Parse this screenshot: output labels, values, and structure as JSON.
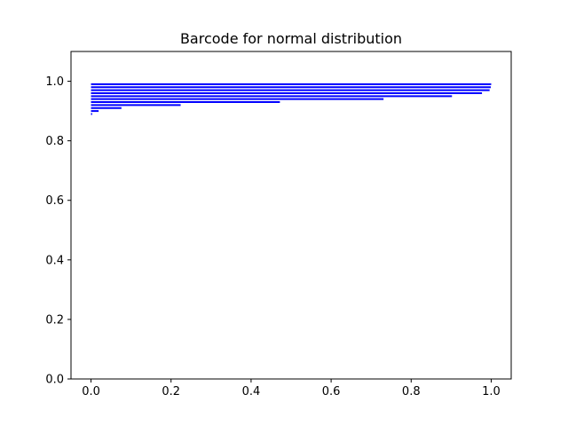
{
  "chart_data": {
    "type": "bar",
    "orientation": "horizontal-segments",
    "title": "Barcode for normal distribution",
    "xlabel": "",
    "ylabel": "",
    "xlim": [
      -0.05,
      1.05
    ],
    "ylim": [
      0.0,
      1.1
    ],
    "xticks": [
      0.0,
      0.2,
      0.4,
      0.6,
      0.8,
      1.0
    ],
    "xtick_labels": [
      "0.0",
      "0.2",
      "0.4",
      "0.6",
      "0.8",
      "1.0"
    ],
    "yticks": [
      0.0,
      0.2,
      0.4,
      0.6,
      0.8,
      1.0
    ],
    "ytick_labels": [
      "0.0",
      "0.2",
      "0.4",
      "0.6",
      "0.8",
      "1.0"
    ],
    "grid": false,
    "color": "#0000ff",
    "segments": [
      {
        "y": 0.89,
        "x_start": 0.0,
        "x_end": 0.003
      },
      {
        "y": 0.9,
        "x_start": 0.0,
        "x_end": 0.019
      },
      {
        "y": 0.91,
        "x_start": 0.0,
        "x_end": 0.076
      },
      {
        "y": 0.92,
        "x_start": 0.0,
        "x_end": 0.224
      },
      {
        "y": 0.93,
        "x_start": 0.0,
        "x_end": 0.472
      },
      {
        "y": 0.94,
        "x_start": 0.0,
        "x_end": 0.731
      },
      {
        "y": 0.95,
        "x_start": 0.0,
        "x_end": 0.902
      },
      {
        "y": 0.96,
        "x_start": 0.0,
        "x_end": 0.977
      },
      {
        "y": 0.97,
        "x_start": 0.0,
        "x_end": 0.996
      },
      {
        "y": 0.98,
        "x_start": 0.0,
        "x_end": 0.999
      },
      {
        "y": 0.99,
        "x_start": 0.0,
        "x_end": 1.0
      }
    ]
  }
}
